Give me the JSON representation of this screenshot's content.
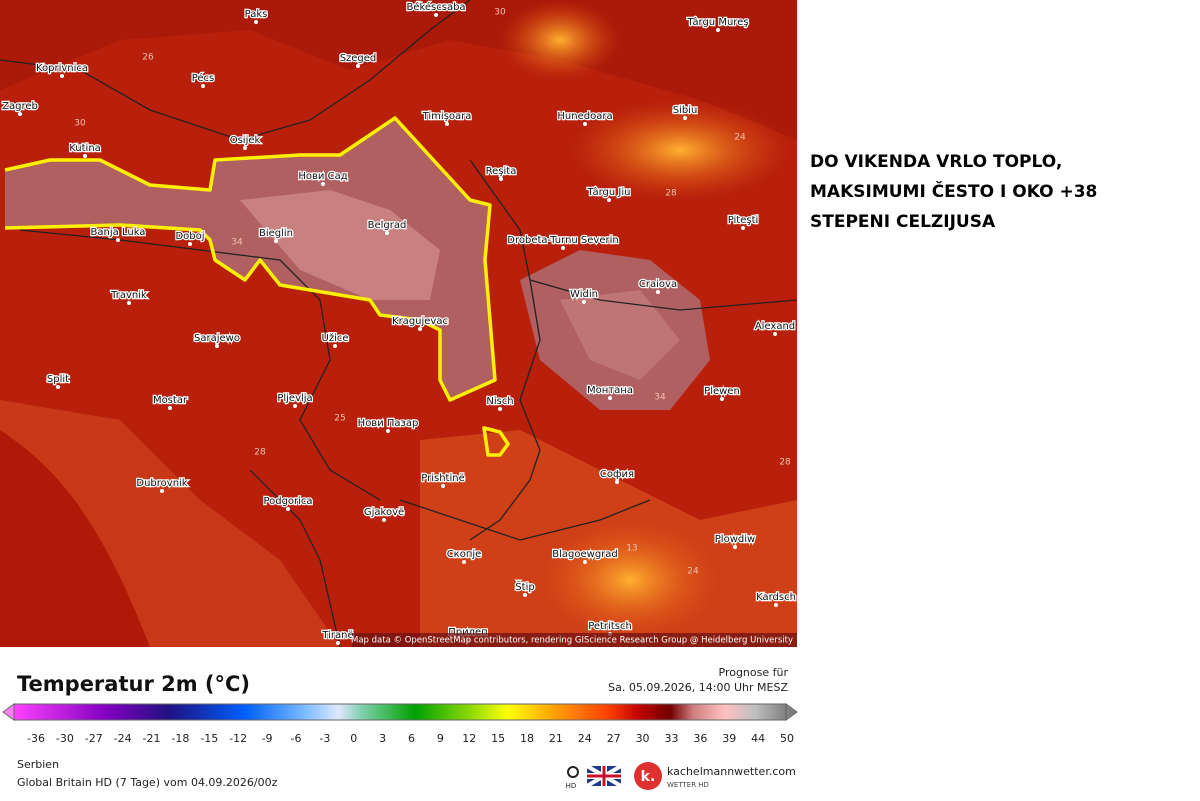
{
  "annotation": [
    "DO VIKENDA VRLO TOPLO,",
    "MAKSIMUMI ČESTO I OKO +38",
    "STEPENI CELZIJUSA"
  ],
  "map": {
    "cities": [
      {
        "name": "Paks"
      },
      {
        "name": "Békéscsaba"
      },
      {
        "name": "Târgu Mureş"
      },
      {
        "name": "Koprivnica"
      },
      {
        "name": "Pécs"
      },
      {
        "name": "Szeged"
      },
      {
        "name": "Zagreb"
      },
      {
        "name": "Timişoara"
      },
      {
        "name": "Hunedoara"
      },
      {
        "name": "Sibiu"
      },
      {
        "name": "Osijek"
      },
      {
        "name": "Kutina"
      },
      {
        "name": "Нови Сад"
      },
      {
        "name": "Reşita"
      },
      {
        "name": "Târgu Jiu"
      },
      {
        "name": "Piteşti"
      },
      {
        "name": "Banja Luka"
      },
      {
        "name": "Doboj"
      },
      {
        "name": "Bieglin"
      },
      {
        "name": "Belgrad"
      },
      {
        "name": "Drobeta-Turnu Severin"
      },
      {
        "name": "Craiova"
      },
      {
        "name": "Travnik"
      },
      {
        "name": "Sarajewo"
      },
      {
        "name": "Užice"
      },
      {
        "name": "Kragujevac"
      },
      {
        "name": "Widin"
      },
      {
        "name": "Alexand"
      },
      {
        "name": "Split"
      },
      {
        "name": "Mostar"
      },
      {
        "name": "Pljevlja"
      },
      {
        "name": "Нови Пазар"
      },
      {
        "name": "Nisch"
      },
      {
        "name": "Монтана"
      },
      {
        "name": "Plewen"
      },
      {
        "name": "Dubrovnik"
      },
      {
        "name": "Podgorica"
      },
      {
        "name": "Prishtinë"
      },
      {
        "name": "София"
      },
      {
        "name": "Gjakovë"
      },
      {
        "name": "Скопје"
      },
      {
        "name": "Blagoewgrad"
      },
      {
        "name": "Plowdiw"
      },
      {
        "name": "Štip"
      },
      {
        "name": "Tiranë"
      },
      {
        "name": "Прилеп"
      },
      {
        "name": "Petritsch"
      },
      {
        "name": "Kardsch"
      }
    ],
    "contour_labels": [
      "26",
      "30",
      "34",
      "30",
      "24",
      "28",
      "34",
      "28",
      "24",
      "25",
      "28",
      "13"
    ],
    "attribution": "Map data © OpenStreetMap contributors, rendering GIScience Research Group @ Heidelberg University"
  },
  "legend": {
    "title": "Temperatur 2m (°C)",
    "forecast_label": "Prognose für",
    "forecast_time": "Sa. 05.09.2026, 14:00 Uhr MESZ",
    "ticks": [
      -36,
      -30,
      -27,
      -24,
      -21,
      -18,
      -15,
      -12,
      -9,
      -6,
      -3,
      0,
      3,
      6,
      9,
      12,
      15,
      18,
      21,
      24,
      27,
      30,
      33,
      36,
      39,
      44,
      50
    ],
    "region": "Serbien",
    "model": "Global Britain HD (7 Tage) vom 04.09.2026/00z",
    "search_label": "HD",
    "brand": "kachelmannwetter.com",
    "brand_sub": "WETTER HD"
  }
}
